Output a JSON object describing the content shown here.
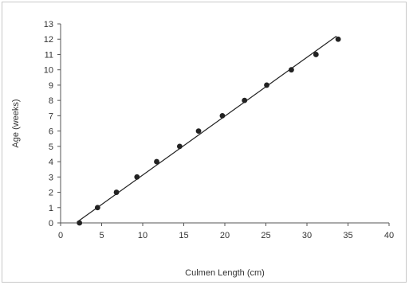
{
  "chart_data": {
    "type": "scatter",
    "title": "",
    "xlabel": "Culmen Length (cm)",
    "ylabel": "Age (weeks)",
    "xlim": [
      0,
      40
    ],
    "ylim": [
      0,
      13
    ],
    "x_ticks": [
      "0",
      "5",
      "10",
      "15",
      "20",
      "25",
      "30",
      "35",
      "40"
    ],
    "y_ticks": [
      "0",
      "1",
      "2",
      "3",
      "4",
      "5",
      "6",
      "7",
      "8",
      "9",
      "10",
      "11",
      "12",
      "13"
    ],
    "grid": false,
    "legend": "none",
    "series": [
      {
        "x": [
          2.3,
          4.5,
          6.8,
          9.3,
          11.7,
          14.5,
          16.8,
          19.7,
          22.4,
          25.1,
          28.1,
          31.1,
          33.8
        ],
        "y": [
          0,
          1,
          2,
          3,
          4,
          5,
          6,
          7,
          8,
          9,
          10,
          11,
          12
        ]
      }
    ],
    "trendline": {
      "x": [
        2.0,
        33.6
      ],
      "y": [
        0.05,
        12.2
      ]
    },
    "colors": {
      "marker": "#222222",
      "line": "#222222",
      "axis": "#555555"
    }
  }
}
